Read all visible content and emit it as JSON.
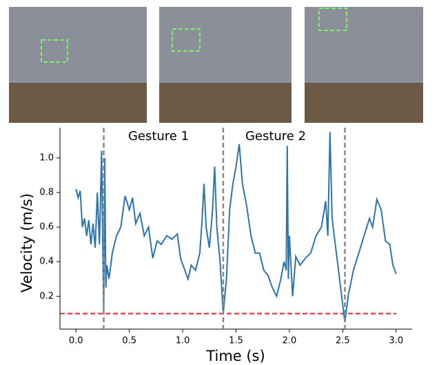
{
  "chart_data": {
    "type": "line",
    "xlabel": "Time (s)",
    "ylabel": "Velocity (m/s)",
    "annotations": [
      "Gesture 1",
      "Gesture 2"
    ],
    "xlim": [
      -0.15,
      3.15
    ],
    "ylim": [
      0.01,
      1.175
    ],
    "xticks": [
      {
        "value": 0,
        "label": "0.0"
      },
      0.5,
      {
        "value": 1,
        "label": "1.0"
      },
      1.5,
      {
        "value": 2,
        "label": "2.0"
      },
      2.5,
      {
        "value": 3,
        "label": "3.0"
      }
    ],
    "yticks": [
      0.2,
      0.4,
      0.6,
      0.8,
      {
        "value": 1,
        "label": "1.0"
      }
    ],
    "vlines": [
      0.26,
      1.38,
      2.52
    ],
    "vline_color": "#888888",
    "hline": 0.1,
    "hline_color": "#e8221f",
    "series": [
      {
        "color": "#2a74b0",
        "x": [
          0,
          0.02,
          0.04,
          0.06,
          0.08,
          0.1,
          0.12,
          0.14,
          0.16,
          0.18,
          0.2,
          0.22,
          0.24,
          0.25,
          0.26,
          0.27,
          0.28,
          0.29,
          0.31,
          0.34,
          0.38,
          0.42,
          0.46,
          0.5,
          0.53,
          0.56,
          0.6,
          0.64,
          0.68,
          0.72,
          0.76,
          0.8,
          0.85,
          0.9,
          0.95,
          0.98,
          1.02,
          1.05,
          1.08,
          1.12,
          1.16,
          1.18,
          1.2,
          1.22,
          1.25,
          1.28,
          1.3,
          1.32,
          1.35,
          1.38,
          1.41,
          1.44,
          1.47,
          1.5,
          1.53,
          1.56,
          1.6,
          1.64,
          1.68,
          1.72,
          1.76,
          1.8,
          1.84,
          1.88,
          1.92,
          1.95,
          1.97,
          1.98,
          1.99,
          2.0,
          2.03,
          2.06,
          2.1,
          2.15,
          2.2,
          2.25,
          2.3,
          2.34,
          2.36,
          2.38,
          2.4,
          2.43,
          2.47,
          2.5,
          2.52,
          2.55,
          2.6,
          2.65,
          2.7,
          2.75,
          2.78,
          2.82,
          2.86,
          2.9,
          2.94,
          2.97,
          3.0
        ],
        "values": [
          0.82,
          0.77,
          0.81,
          0.6,
          0.65,
          0.55,
          0.64,
          0.5,
          0.62,
          0.48,
          0.8,
          0.5,
          1.04,
          0.55,
          0.12,
          1.0,
          0.25,
          0.38,
          0.3,
          0.45,
          0.55,
          0.6,
          0.78,
          0.7,
          0.77,
          0.62,
          0.68,
          0.55,
          0.6,
          0.42,
          0.52,
          0.5,
          0.55,
          0.53,
          0.56,
          0.42,
          0.35,
          0.3,
          0.38,
          0.35,
          0.45,
          0.62,
          0.85,
          0.6,
          0.48,
          0.7,
          0.95,
          0.6,
          0.4,
          0.1,
          0.3,
          0.7,
          0.85,
          0.95,
          1.08,
          0.85,
          0.72,
          0.55,
          0.45,
          0.45,
          0.35,
          0.32,
          0.25,
          0.2,
          0.3,
          0.4,
          0.35,
          1.07,
          0.3,
          0.55,
          0.2,
          0.43,
          0.38,
          0.42,
          0.45,
          0.55,
          0.6,
          0.75,
          0.55,
          1.15,
          0.65,
          0.5,
          0.3,
          0.15,
          0.05,
          0.2,
          0.35,
          0.45,
          0.55,
          0.65,
          0.6,
          0.76,
          0.7,
          0.52,
          0.5,
          0.38,
          0.33
        ]
      }
    ]
  }
}
